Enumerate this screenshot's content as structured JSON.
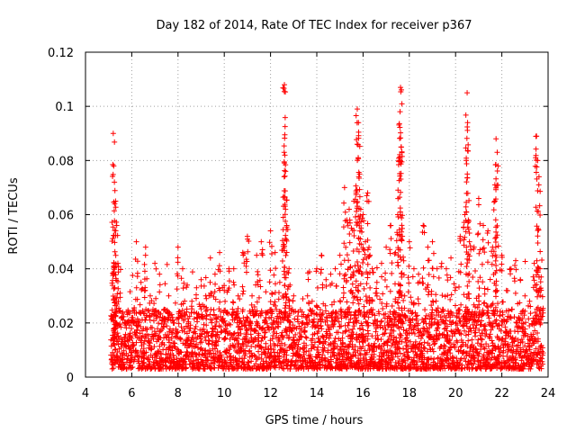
{
  "chart_data": {
    "type": "scatter",
    "title": "Day 182 of 2014, Rate Of TEC Index for receiver p367",
    "xlabel": "GPS time / hours",
    "ylabel": "ROTI / TECUs",
    "xlim": [
      4,
      24
    ],
    "ylim": [
      0,
      0.12
    ],
    "xticks": [
      4,
      6,
      8,
      10,
      12,
      14,
      16,
      18,
      20,
      22,
      24
    ],
    "xtick_labels": [
      "4",
      "6",
      "8",
      "10",
      "12",
      "14",
      "16",
      "18",
      "20",
      "22",
      "24"
    ],
    "yticks": [
      0,
      0.02,
      0.04,
      0.06,
      0.08,
      0.1,
      0.12
    ],
    "ytick_labels": [
      "0",
      "0.02",
      "0.04",
      "0.06",
      "0.08",
      "0.1",
      "0.12"
    ],
    "grid": true,
    "marker": "+",
    "color": "#ff0000",
    "series": [
      {
        "name": "ROTI",
        "x": [
          5.2,
          5.22,
          5.25,
          5.3,
          5.35,
          5.4,
          5.5,
          5.6,
          5.2,
          5.25,
          5.3,
          5.28,
          5.32,
          5.45,
          5.55,
          6.0,
          6.2,
          6.4,
          6.6,
          6.8,
          7.0,
          7.2,
          7.4,
          7.6,
          7.8,
          8.0,
          8.2,
          8.4,
          8.6,
          8.8,
          9.0,
          9.2,
          9.4,
          9.6,
          9.8,
          10.0,
          10.2,
          10.4,
          10.6,
          10.8,
          11.0,
          11.2,
          11.4,
          11.6,
          11.8,
          12.0,
          12.2,
          12.4,
          12.55,
          12.6,
          12.62,
          12.65,
          12.7,
          12.8,
          13.0,
          13.2,
          13.4,
          13.6,
          13.8,
          14.0,
          14.2,
          14.4,
          14.6,
          14.8,
          15.0,
          15.2,
          15.3,
          15.4,
          15.5,
          15.6,
          15.7,
          15.75,
          15.8,
          15.85,
          15.9,
          16.0,
          16.1,
          16.2,
          16.3,
          16.4,
          16.6,
          16.8,
          17.0,
          17.2,
          17.4,
          17.5,
          17.55,
          17.6,
          17.62,
          17.65,
          17.7,
          17.8,
          18.0,
          18.2,
          18.4,
          18.6,
          18.8,
          19.0,
          19.2,
          19.4,
          19.6,
          19.8,
          20.0,
          20.2,
          20.4,
          20.5,
          20.52,
          20.55,
          20.6,
          20.8,
          21.0,
          21.2,
          21.4,
          21.6,
          21.7,
          21.75,
          21.8,
          22.0,
          22.2,
          22.4,
          22.6,
          22.8,
          23.0,
          23.2,
          23.4,
          23.5,
          23.55,
          23.6,
          23.65,
          23.7
        ],
        "y": [
          0.09,
          0.078,
          0.072,
          0.065,
          0.056,
          0.042,
          0.031,
          0.024,
          0.012,
          0.015,
          0.018,
          0.01,
          0.02,
          0.014,
          0.011,
          0.022,
          0.05,
          0.035,
          0.048,
          0.03,
          0.042,
          0.038,
          0.025,
          0.03,
          0.02,
          0.048,
          0.04,
          0.034,
          0.028,
          0.033,
          0.036,
          0.03,
          0.044,
          0.038,
          0.046,
          0.032,
          0.04,
          0.035,
          0.03,
          0.046,
          0.052,
          0.03,
          0.045,
          0.05,
          0.022,
          0.054,
          0.046,
          0.035,
          0.059,
          0.108,
          0.082,
          0.076,
          0.056,
          0.04,
          0.03,
          0.024,
          0.02,
          0.03,
          0.028,
          0.04,
          0.045,
          0.036,
          0.038,
          0.04,
          0.045,
          0.07,
          0.058,
          0.062,
          0.055,
          0.065,
          0.068,
          0.099,
          0.094,
          0.075,
          0.062,
          0.06,
          0.05,
          0.068,
          0.045,
          0.04,
          0.035,
          0.042,
          0.048,
          0.056,
          0.046,
          0.06,
          0.08,
          0.098,
          0.107,
          0.085,
          0.052,
          0.03,
          0.05,
          0.04,
          0.038,
          0.056,
          0.048,
          0.05,
          0.04,
          0.042,
          0.04,
          0.044,
          0.033,
          0.052,
          0.06,
          0.105,
          0.094,
          0.058,
          0.05,
          0.048,
          0.066,
          0.056,
          0.054,
          0.048,
          0.071,
          0.088,
          0.083,
          0.045,
          0.032,
          0.04,
          0.043,
          0.036,
          0.03,
          0.028,
          0.042,
          0.089,
          0.08,
          0.071,
          0.04,
          0.037
        ]
      }
    ],
    "dense_band": {
      "x_range": [
        5.1,
        23.8
      ],
      "y_min": 0.003,
      "y_typical_max": 0.025,
      "description_values": [
        0.005,
        0.01,
        0.015,
        0.02,
        0.025
      ]
    }
  }
}
